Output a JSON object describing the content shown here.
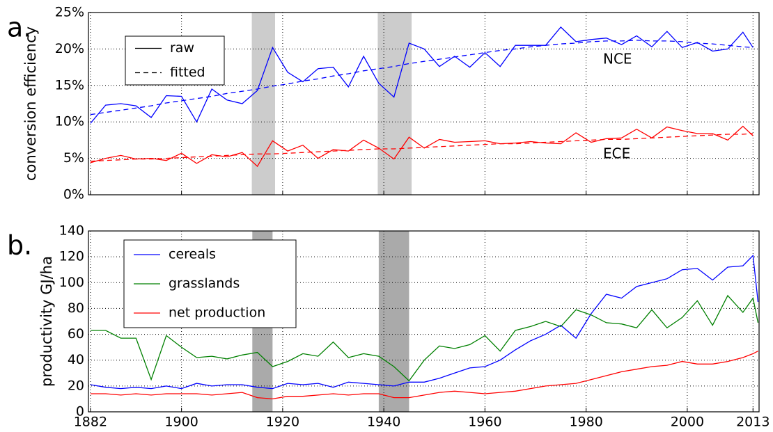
{
  "chart_data": [
    {
      "type": "line",
      "panel_label": "a.",
      "ylabel": "conversion efficiency",
      "xlim": [
        1881.6,
        2014.2
      ],
      "ylim": [
        0,
        25
      ],
      "xticks": [
        1882,
        1900,
        1920,
        1940,
        1960,
        1980,
        2000,
        2013
      ],
      "xtick_labels": false,
      "yticks": [
        {
          "value": 0,
          "label": "0%"
        },
        {
          "value": 5,
          "label": "5%"
        },
        {
          "value": 10,
          "label": "10%"
        },
        {
          "value": 15,
          "label": "15%"
        },
        {
          "value": 20,
          "label": "20%"
        },
        {
          "value": 25,
          "label": "25%"
        }
      ],
      "grid": true,
      "shade_color": "#cccccc",
      "shaded_periods": [
        [
          1913.9,
          1918.5
        ],
        [
          1938.8,
          1945.5
        ]
      ],
      "legend": [
        {
          "label": "raw",
          "style": "solid"
        },
        {
          "label": "fitted",
          "style": "dashed"
        }
      ],
      "x": [
        1882,
        1885,
        1888,
        1891,
        1894,
        1897,
        1900,
        1903,
        1906,
        1909,
        1912,
        1915,
        1918,
        1921,
        1924,
        1927,
        1930,
        1933,
        1936,
        1939,
        1942,
        1945,
        1948,
        1951,
        1954,
        1957,
        1960,
        1963,
        1966,
        1969,
        1972,
        1975,
        1978,
        1981,
        1984,
        1987,
        1990,
        1993,
        1996,
        1999,
        2002,
        2005,
        2008,
        2011,
        2013
      ],
      "series": [
        {
          "name": "NCE",
          "color": "#0000ff",
          "values": [
            9.8,
            12.3,
            12.5,
            12.2,
            10.6,
            13.6,
            13.5,
            10.0,
            14.5,
            13.0,
            12.5,
            14.3,
            20.2,
            16.8,
            15.5,
            17.3,
            17.5,
            14.8,
            19.0,
            15.3,
            13.4,
            20.8,
            20.0,
            17.6,
            19.0,
            17.5,
            19.5,
            17.6,
            20.5,
            20.5,
            20.5,
            23.0,
            21.0,
            21.3,
            21.5,
            20.6,
            21.8,
            20.3,
            22.4,
            20.2,
            20.9,
            19.7,
            20.0,
            22.3,
            20.2
          ],
          "fitted": [
            11.0,
            11.3,
            11.6,
            11.9,
            12.2,
            12.6,
            12.9,
            13.2,
            13.5,
            13.9,
            14.2,
            14.5,
            14.9,
            15.2,
            15.6,
            15.9,
            16.3,
            16.6,
            17.0,
            17.3,
            17.6,
            18.0,
            18.3,
            18.6,
            18.9,
            19.2,
            19.5,
            19.8,
            20.0,
            20.3,
            20.5,
            20.7,
            20.8,
            21.0,
            21.1,
            21.1,
            21.2,
            21.1,
            21.1,
            21.0,
            20.8,
            20.7,
            20.5,
            20.3,
            20.2
          ]
        },
        {
          "name": "ECE",
          "color": "#ff0000",
          "values": [
            4.4,
            5.0,
            5.4,
            4.9,
            5.0,
            4.7,
            5.7,
            4.3,
            5.5,
            5.2,
            5.8,
            3.9,
            7.4,
            6.0,
            6.8,
            5.0,
            6.2,
            6.0,
            7.5,
            6.4,
            4.9,
            7.9,
            6.4,
            7.6,
            7.2,
            7.3,
            7.4,
            7.0,
            7.1,
            7.3,
            7.1,
            7.0,
            8.5,
            7.2,
            7.7,
            7.8,
            9.0,
            7.8,
            9.3,
            8.8,
            8.4,
            8.4,
            7.5,
            9.4,
            8.1
          ],
          "fitted": [
            4.6,
            4.7,
            4.8,
            4.9,
            4.9,
            5.0,
            5.1,
            5.2,
            5.3,
            5.4,
            5.5,
            5.6,
            5.6,
            5.7,
            5.8,
            5.9,
            6.0,
            6.1,
            6.2,
            6.3,
            6.3,
            6.4,
            6.5,
            6.6,
            6.7,
            6.8,
            6.9,
            7.0,
            7.0,
            7.1,
            7.2,
            7.3,
            7.4,
            7.5,
            7.6,
            7.6,
            7.7,
            7.8,
            7.9,
            8.0,
            8.1,
            8.2,
            8.3,
            8.3,
            8.4
          ]
        }
      ]
    },
    {
      "type": "line",
      "panel_label": "b.",
      "ylabel": "productivity GJ/ha",
      "xlim": [
        1881.6,
        2014.2
      ],
      "ylim": [
        0,
        140
      ],
      "xticks": [
        1882,
        1900,
        1920,
        1940,
        1960,
        1980,
        2000,
        2013
      ],
      "xtick_labels": true,
      "yticks": [
        0,
        20,
        40,
        60,
        80,
        100,
        120,
        140
      ],
      "grid": true,
      "shade_color": "#aaaaaa",
      "shaded_periods": [
        [
          1914,
          1918
        ],
        [
          1939,
          1945
        ]
      ],
      "x": [
        1882,
        1885,
        1888,
        1891,
        1894,
        1897,
        1900,
        1903,
        1906,
        1909,
        1912,
        1915,
        1918,
        1921,
        1924,
        1927,
        1930,
        1933,
        1936,
        1939,
        1942,
        1945,
        1948,
        1951,
        1954,
        1957,
        1960,
        1963,
        1966,
        1969,
        1972,
        1975,
        1978,
        1981,
        1984,
        1987,
        1990,
        1993,
        1996,
        1999,
        2002,
        2005,
        2008,
        2011,
        2013,
        2014
      ],
      "series": [
        {
          "name": "cereals",
          "color": "#0000ff",
          "values": [
            21,
            19,
            18,
            19,
            18,
            20,
            18,
            22,
            20,
            21,
            21,
            19,
            18,
            22,
            21,
            22,
            19,
            23,
            22,
            21,
            20,
            23,
            23,
            26,
            30,
            34,
            35,
            40,
            48,
            55,
            60,
            67,
            57,
            76,
            91,
            88,
            97,
            100,
            103,
            110,
            111,
            102,
            112,
            113,
            121,
            85
          ]
        },
        {
          "name": "grasslands",
          "color": "#008000",
          "values": [
            63,
            63,
            57,
            57,
            25,
            59,
            50,
            42,
            43,
            41,
            44,
            46,
            35,
            39,
            45,
            43,
            54,
            42,
            45,
            43,
            35,
            24,
            40,
            51,
            49,
            52,
            59,
            47,
            63,
            66,
            70,
            66,
            79,
            75,
            69,
            68,
            65,
            79,
            65,
            73,
            86,
            67,
            90,
            77,
            88,
            69
          ]
        },
        {
          "name": "net production",
          "color": "#ff0000",
          "values": [
            14,
            14,
            13,
            14,
            13,
            14,
            14,
            14,
            13,
            14,
            15,
            11,
            10,
            12,
            12,
            13,
            14,
            13,
            14,
            14,
            11,
            11,
            13,
            15,
            16,
            15,
            14,
            15,
            16,
            18,
            20,
            21,
            22,
            25,
            28,
            31,
            33,
            35,
            36,
            39,
            37,
            37,
            39,
            42,
            45,
            47
          ]
        }
      ]
    }
  ]
}
